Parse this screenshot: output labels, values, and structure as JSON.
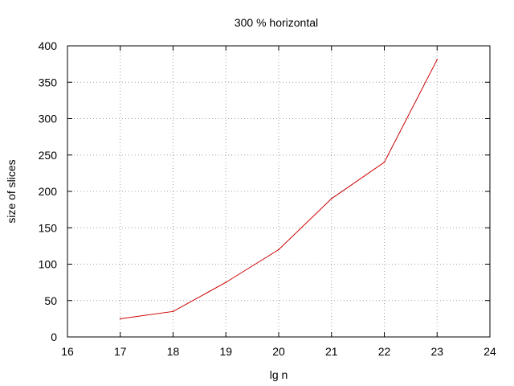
{
  "chart_data": {
    "type": "line",
    "title": "300 % horizontal",
    "xlabel": "lg n",
    "ylabel": "size of slices",
    "xlim": [
      16,
      24
    ],
    "ylim": [
      0,
      400
    ],
    "xticks": [
      16,
      17,
      18,
      19,
      20,
      21,
      22,
      23,
      24
    ],
    "yticks": [
      0,
      50,
      100,
      150,
      200,
      250,
      300,
      350,
      400
    ],
    "grid": true,
    "series": [
      {
        "color": "#cc0000",
        "x": [
          17,
          18,
          19,
          20,
          21,
          22,
          23
        ],
        "y": [
          25,
          35,
          75,
          120,
          190,
          240,
          381
        ]
      }
    ]
  }
}
